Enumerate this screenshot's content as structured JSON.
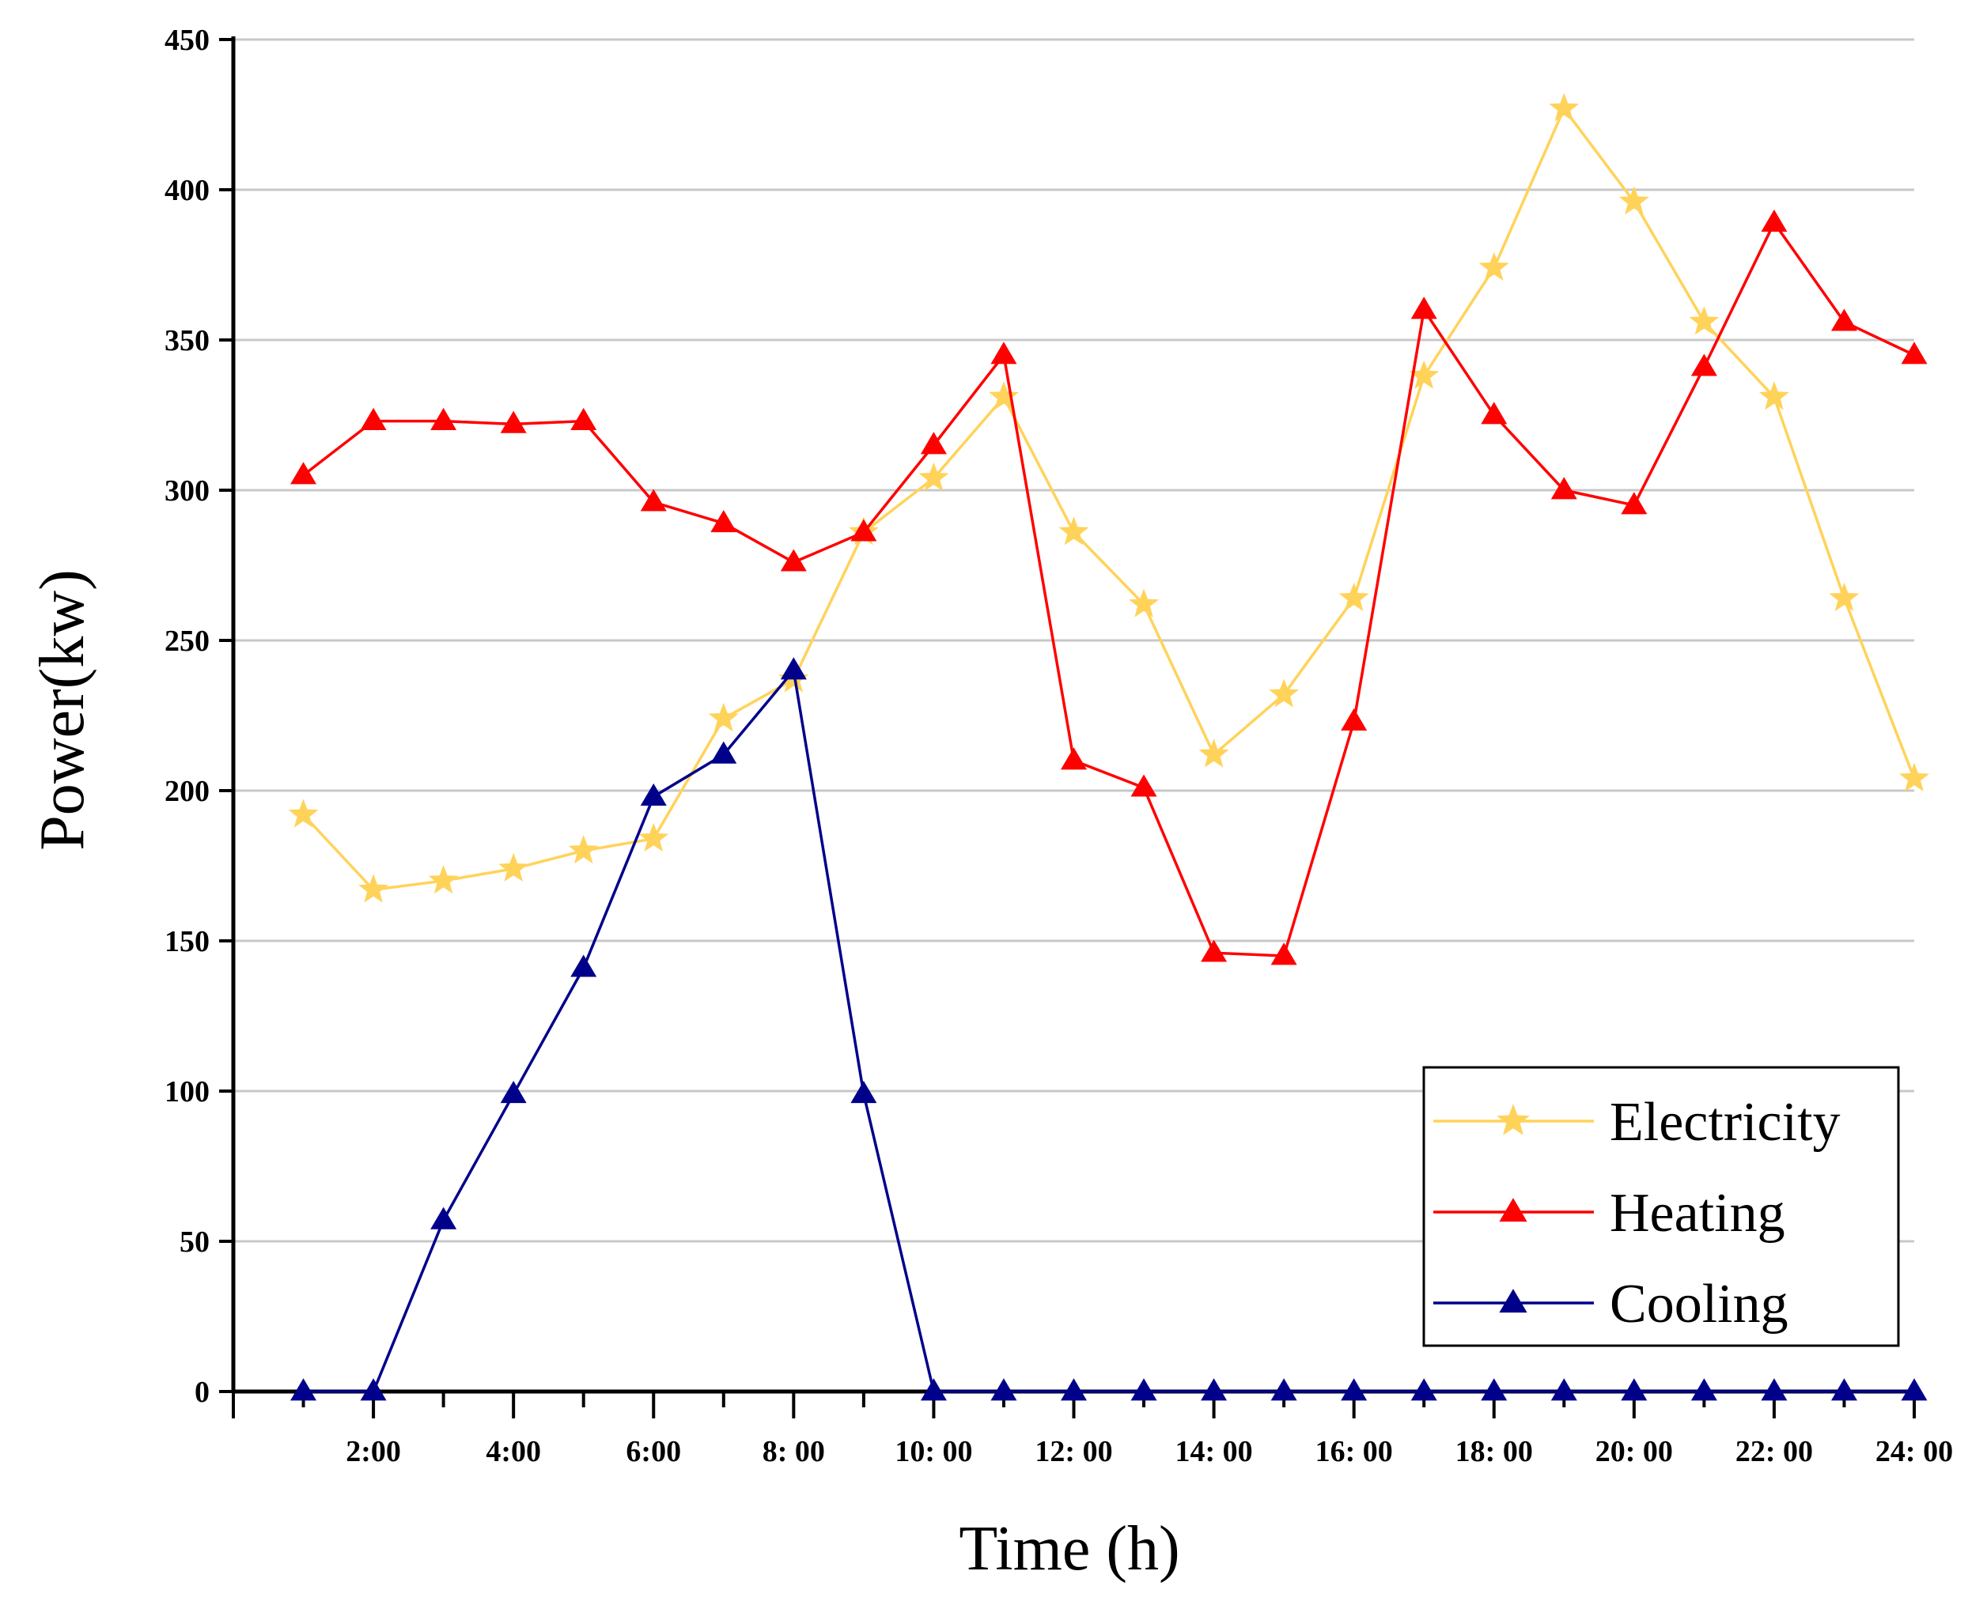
{
  "chart_data": {
    "type": "line",
    "title": "",
    "xlabel": "Time (h)",
    "ylabel": "Power(kw)",
    "ylim": [
      0,
      450
    ],
    "yticks": [
      0,
      50,
      100,
      150,
      200,
      250,
      300,
      350,
      400,
      450
    ],
    "xlim": [
      0,
      24
    ],
    "x": [
      1,
      2,
      3,
      4,
      5,
      6,
      7,
      8,
      9,
      10,
      11,
      12,
      13,
      14,
      15,
      16,
      17,
      18,
      19,
      20,
      21,
      22,
      23,
      24
    ],
    "xtick_positions": [
      2,
      4,
      6,
      8,
      10,
      12,
      14,
      16,
      18,
      20,
      22,
      24
    ],
    "xtick_labels": [
      "2:00",
      "4:00",
      "6:00",
      "8: 00",
      "10: 00",
      "12: 00",
      "14: 00",
      "16: 00",
      "18: 00",
      "20: 00",
      "22: 00",
      "24: 00"
    ],
    "grid": "horizontal",
    "legend_position": "bottom-right",
    "series": [
      {
        "name": "Electricity",
        "color": "#FFD35A",
        "marker": "star",
        "values": [
          192,
          167,
          170,
          174,
          180,
          184,
          224,
          237,
          286,
          304,
          331,
          286,
          262,
          212,
          232,
          264,
          338,
          374,
          427,
          396,
          356,
          331,
          264,
          204
        ]
      },
      {
        "name": "Heating",
        "color": "#FF0000",
        "marker": "triangle",
        "values": [
          305,
          323,
          323,
          322,
          323,
          296,
          289,
          276,
          286,
          315,
          345,
          210,
          201,
          146,
          145,
          223,
          360,
          325,
          300,
          295,
          341,
          389,
          356,
          345
        ]
      },
      {
        "name": "Cooling",
        "color": "#00008B",
        "marker": "triangle",
        "values": [
          0,
          0,
          57,
          99,
          141,
          198,
          212,
          240,
          99,
          0,
          0,
          0,
          0,
          0,
          0,
          0,
          0,
          0,
          0,
          0,
          0,
          0,
          0,
          0
        ]
      }
    ]
  }
}
